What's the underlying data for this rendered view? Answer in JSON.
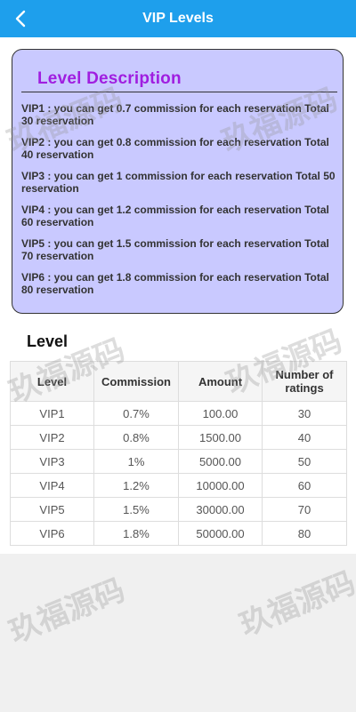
{
  "header": {
    "title": "VIP Levels",
    "back_icon": "chevron-left-icon",
    "background": "#1e9fec"
  },
  "description": {
    "title": "Level Description",
    "items": [
      "VIP1 : you can get 0.7 commission for each reservation Total 30 reservation",
      "VIP2 : you can get 0.8 commission for each reservation Total 40 reservation",
      "VIP3 : you can get 1 commission for each reservation Total 50 reservation",
      "VIP4 : you can get 1.2 commission for each reservation Total 60 reservation",
      "VIP5 : you can get 1.5 commission for each reservation Total 70 reservation",
      "VIP6 : you can get 1.8 commission for each reservation Total 80 reservation"
    ],
    "card_color": "#c9c9ff",
    "title_color": "#a01ee0"
  },
  "level_section": {
    "heading": "Level",
    "columns": [
      "Level",
      "Commission",
      "Amount",
      "Number of ratings"
    ],
    "rows": [
      [
        "VIP1",
        "0.7%",
        "100.00",
        "30"
      ],
      [
        "VIP2",
        "0.8%",
        "1500.00",
        "40"
      ],
      [
        "VIP3",
        "1%",
        "5000.00",
        "50"
      ],
      [
        "VIP4",
        "1.2%",
        "10000.00",
        "60"
      ],
      [
        "VIP5",
        "1.5%",
        "30000.00",
        "70"
      ],
      [
        "VIP6",
        "1.8%",
        "50000.00",
        "80"
      ]
    ]
  },
  "watermark": "玖福源码"
}
